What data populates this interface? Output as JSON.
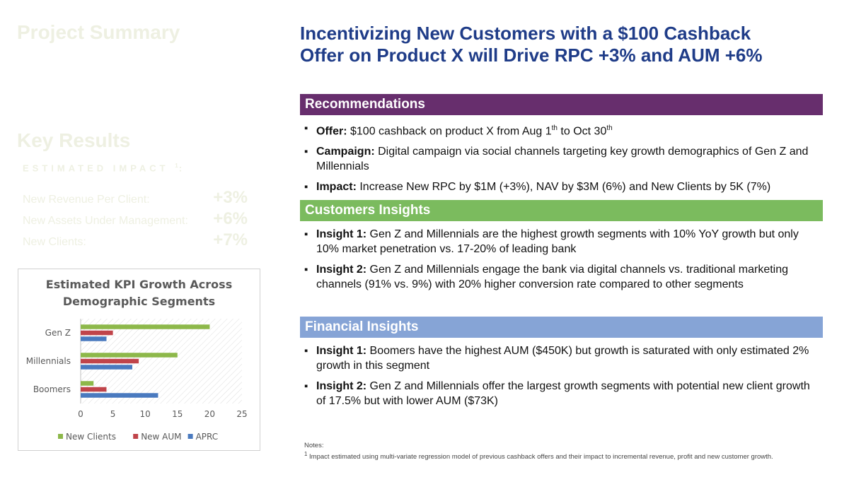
{
  "left": {
    "project_summary": "Project Summary",
    "key_results": "Key Results",
    "estimated_impact": "ESTIMATED IMPACT",
    "estimated_impact_sup": "1",
    "estimated_impact_suffix": ":",
    "metrics": [
      {
        "label": "New Revenue Per Client:",
        "value": "+3%"
      },
      {
        "label": "New Assets Under Management:",
        "value": "+6%"
      },
      {
        "label": "New Clients:",
        "value": "+7%"
      }
    ]
  },
  "chart_data": {
    "type": "bar",
    "orientation": "horizontal",
    "title": "Estimated KPI Growth Across Demographic Segments",
    "title_lines": [
      "Estimated KPI Growth Across",
      "Demographic Segments"
    ],
    "categories": [
      "Gen Z",
      "Millennials",
      "Boomers"
    ],
    "series": [
      {
        "name": "New Clients",
        "color": "#8db84a",
        "values": [
          20,
          15,
          2
        ]
      },
      {
        "name": "New AUM",
        "color": "#c0444a",
        "values": [
          5,
          9,
          4
        ]
      },
      {
        "name": "APRC",
        "color": "#4a7abf",
        "values": [
          4,
          8,
          12
        ]
      }
    ],
    "xlim": [
      0,
      25
    ],
    "xticks": [
      "0",
      "5",
      "10",
      "15",
      "20",
      "25"
    ],
    "legend": "bottom"
  },
  "main": {
    "title_line1": "Incentivizing New Customers with a $100 Cashback",
    "title_line2": "Offer on Product X will Drive RPC +3% and AUM +6%",
    "recommendations": {
      "heading": "Recommendations",
      "offer_label": "Offer:",
      "offer_text_a": " $100 cashback on product X from Aug 1",
      "offer_sup_a": "th",
      "offer_text_b": " to Oct 30",
      "offer_sup_b": "th",
      "campaign_label": "Campaign:",
      "campaign_text": " Digital campaign via social channels targeting key growth demographics of Gen Z and Millennials",
      "impact_label": "Impact:",
      "impact_text": " Increase New RPC by $1M (+3%), NAV by $3M (6%) and New Clients by 5K (7%)"
    },
    "customers": {
      "heading": "Customers Insights",
      "insight1_label": "Insight 1:",
      "insight1_text": " Gen Z and Millennials are the highest growth segments with 10% YoY growth but only 10% market penetration vs. 17-20% of leading bank",
      "insight2_label": "Insight 2:",
      "insight2_text": " Gen Z and Millennials engage the bank via digital channels vs. traditional marketing channels (91% vs. 9%) with 20% higher conversion rate compared to other segments"
    },
    "financial": {
      "heading": "Financial Insights",
      "insight1_label": "Insight 1:",
      "insight1_text": " Boomers have the highest AUM ($450K) but growth is saturated with only estimated 2% growth in this segment",
      "insight2_label": "Insight 2:",
      "insight2_text": " Gen Z and Millennials offer the largest growth segments with potential new client growth of 17.5% but with lower AUM ($73K)"
    },
    "notes_title": "Notes:",
    "notes_sup": "1",
    "notes_text": " Impact estimated using multi-variate regression model of previous cashback offers and their impact to incremental revenue, profit and new customer growth."
  }
}
